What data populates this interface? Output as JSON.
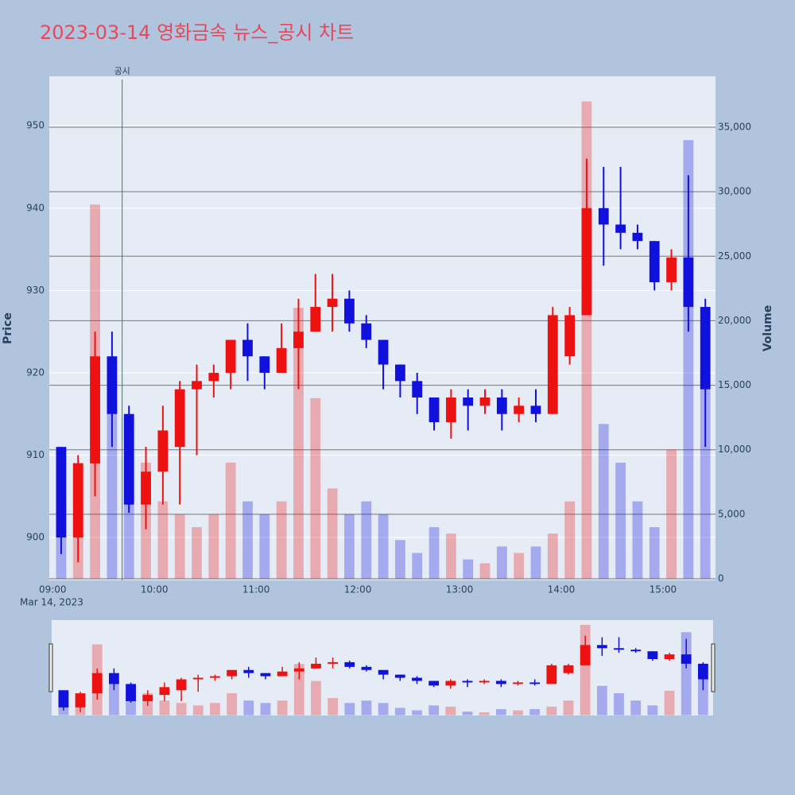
{
  "chart_data": {
    "type": "candlestick",
    "title": "2023-03-14 영화금속 뉴스_공시 차트",
    "y_label": "Price",
    "y2_label": "Volume",
    "date_label": "Mar 14, 2023",
    "x": [
      "09:00",
      "09:10",
      "09:20",
      "09:30",
      "09:40",
      "09:50",
      "10:00",
      "10:10",
      "10:20",
      "10:30",
      "10:40",
      "10:50",
      "11:00",
      "11:10",
      "11:20",
      "11:30",
      "11:40",
      "11:50",
      "12:00",
      "12:10",
      "12:20",
      "12:30",
      "12:40",
      "12:50",
      "13:00",
      "13:10",
      "13:20",
      "13:30",
      "13:40",
      "13:50",
      "14:00",
      "14:10",
      "14:20",
      "14:30",
      "14:40",
      "14:50",
      "15:00",
      "15:10",
      "15:20"
    ],
    "open": [
      911,
      900,
      909,
      922,
      915,
      904,
      908,
      911,
      918,
      919,
      920,
      924,
      922,
      920,
      923,
      925,
      928,
      929,
      926,
      924,
      921,
      919,
      917,
      914,
      917,
      916,
      917,
      915,
      916,
      915,
      922,
      927,
      940,
      938,
      937,
      936,
      931,
      934,
      928
    ],
    "high": [
      911,
      910,
      925,
      925,
      916,
      911,
      916,
      919,
      921,
      921,
      924,
      926,
      922,
      926,
      929,
      932,
      932,
      930,
      927,
      924,
      921,
      920,
      917,
      918,
      918,
      918,
      918,
      917,
      918,
      928,
      928,
      946,
      945,
      945,
      938,
      936,
      935,
      944,
      929
    ],
    "low": [
      898,
      897,
      905,
      911,
      903,
      901,
      904,
      904,
      910,
      917,
      918,
      919,
      918,
      920,
      918,
      925,
      925,
      925,
      923,
      918,
      917,
      915,
      913,
      912,
      913,
      915,
      913,
      914,
      914,
      915,
      921,
      927,
      933,
      935,
      935,
      930,
      930,
      925,
      911
    ],
    "close": [
      900,
      909,
      922,
      915,
      904,
      908,
      913,
      918,
      919,
      920,
      924,
      922,
      920,
      923,
      925,
      928,
      929,
      926,
      924,
      921,
      919,
      917,
      914,
      917,
      916,
      917,
      915,
      916,
      915,
      927,
      927,
      940,
      938,
      937,
      936,
      931,
      934,
      928,
      918
    ],
    "volume": [
      6000,
      9000,
      29000,
      14000,
      8000,
      9000,
      6000,
      5000,
      4000,
      5000,
      9000,
      6000,
      5000,
      6000,
      21000,
      14000,
      7000,
      5000,
      6000,
      5000,
      3000,
      2000,
      4000,
      3500,
      1500,
      1200,
      2500,
      2000,
      2500,
      3500,
      6000,
      37000,
      12000,
      9000,
      6000,
      4000,
      10000,
      34000,
      16000
    ],
    "up_color": "#ee1111",
    "down_color": "#1111dd",
    "annotation": {
      "x": "09:41",
      "text": "공시",
      "color": "#2e8b2e"
    },
    "xlim": [
      "08:58",
      "15:31"
    ],
    "xticks": [
      "09:00",
      "10:00",
      "11:00",
      "12:00",
      "13:00",
      "14:00",
      "15:00"
    ],
    "ylim": [
      894.8,
      956
    ],
    "yticks": [
      900,
      910,
      920,
      930,
      940,
      950
    ],
    "y2lim": [
      -123,
      38944
    ],
    "y2ticks": [
      0,
      {
        "value": 5000,
        "label": "5,000"
      },
      {
        "value": 10000,
        "label": "10,000"
      },
      {
        "value": 15000,
        "label": "15,000"
      },
      {
        "value": 20000,
        "label": "20,000"
      },
      {
        "value": 25000,
        "label": "25,000"
      },
      {
        "value": 30000,
        "label": "30,000"
      },
      {
        "value": 35000,
        "label": "35,000"
      }
    ],
    "grid": true
  }
}
